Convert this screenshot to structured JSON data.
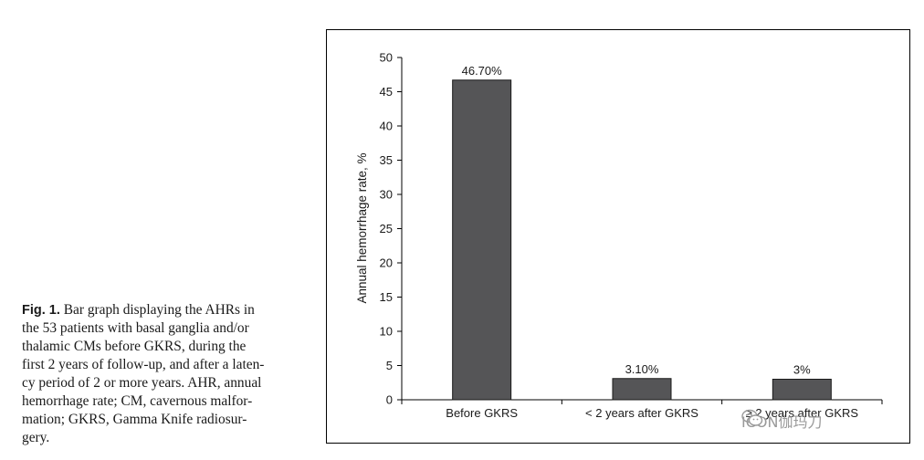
{
  "caption": {
    "label": "Fig. 1.",
    "lines": [
      " Bar graph displaying the AHRs in",
      "the 53 patients with basal ganglia and/or",
      "thalamic CMs before GKRS, during the",
      "first 2 years of follow-up, and after a laten-",
      "cy period of 2 or more years. AHR, annual",
      "hemorrhage rate; CM, cavernous malfor-",
      "mation; GKRS, Gamma Knife radiosur-",
      "gery."
    ]
  },
  "chart_data": {
    "type": "bar",
    "categories": [
      "Before GKRS",
      "< 2 years after GKRS",
      "≥ 2 years after GKRS"
    ],
    "values": [
      46.7,
      3.1,
      3
    ],
    "data_labels": [
      "46.70%",
      "3.10%",
      "3%"
    ],
    "ylabel": "Annual hemorrhage rate, %",
    "xlabel": "",
    "ylim": [
      0,
      50
    ],
    "yticks": [
      0,
      5,
      10,
      15,
      20,
      25,
      30,
      35,
      40,
      45,
      50
    ],
    "bar_color": "#555557",
    "grid": false
  },
  "watermark": {
    "text": "ICON伽玛刀",
    "icon": "wechat-icon"
  }
}
